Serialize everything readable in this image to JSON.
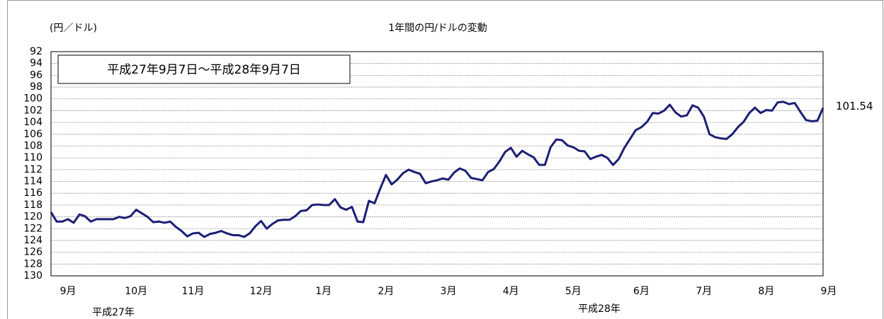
{
  "chart_data": {
    "type": "line",
    "title": "1年間の円/ドルの変動",
    "y_label": "(円／ドル)",
    "period_label": "平成27年9月7日～平成28年9月7日",
    "year_labels": [
      "平成27年",
      "平成28年"
    ],
    "categories": [
      null,
      null,
      "9月",
      null,
      null,
      null,
      null,
      null,
      null,
      null,
      null,
      null,
      null,
      null,
      "10月",
      null,
      null,
      null,
      null,
      null,
      null,
      null,
      null,
      null,
      "11月",
      null,
      null,
      null,
      null,
      null,
      null,
      null,
      null,
      null,
      null,
      null,
      "12月",
      null,
      null,
      null,
      null,
      null,
      null,
      null,
      null,
      null,
      null,
      "1月",
      null,
      null,
      null,
      null,
      null,
      null,
      null,
      null,
      null,
      null,
      "2月",
      null,
      null,
      null,
      null,
      null,
      null,
      null,
      null,
      null,
      null,
      "3月",
      null,
      null,
      null,
      null,
      null,
      null,
      null,
      null,
      null,
      null,
      "4月",
      null,
      null,
      null,
      null,
      null,
      null,
      null,
      null,
      null,
      null,
      "5月",
      null,
      null,
      null,
      null,
      null,
      null,
      null,
      null,
      null,
      null,
      null,
      "6月",
      null,
      null,
      null,
      null,
      null,
      null,
      null,
      null,
      null,
      null,
      "7月",
      null,
      null,
      null,
      null,
      null,
      null,
      null,
      null,
      null,
      null,
      "8月",
      null,
      null,
      null,
      null,
      null,
      null,
      null,
      null,
      null,
      null,
      "9月"
    ],
    "series": [
      {
        "color": "#1c1f73",
        "values": [
          119.2,
          120.8,
          120.8,
          120.4,
          121.0,
          119.6,
          119.9,
          120.8,
          120.4,
          120.4,
          120.4,
          120.4,
          120.0,
          120.2,
          119.9,
          118.8,
          119.4,
          120.0,
          120.9,
          120.8,
          121.0,
          120.8,
          121.7,
          122.4,
          123.3,
          122.8,
          122.7,
          123.4,
          122.9,
          122.7,
          122.4,
          122.8,
          123.1,
          123.1,
          123.4,
          122.8,
          121.6,
          120.7,
          122.0,
          121.2,
          120.6,
          120.5,
          120.5,
          119.9,
          119.0,
          118.9,
          118.0,
          117.9,
          118.0,
          118.0,
          117.0,
          118.4,
          118.8,
          118.3,
          120.8,
          120.9,
          117.3,
          117.7,
          115.2,
          112.9,
          114.5,
          113.7,
          112.6,
          112.0,
          112.4,
          112.7,
          114.3,
          114.0,
          113.8,
          113.5,
          113.7,
          112.5,
          111.8,
          112.2,
          113.4,
          113.6,
          113.8,
          112.4,
          111.9,
          110.6,
          109.0,
          108.3,
          109.8,
          108.8,
          109.4,
          109.9,
          111.2,
          111.2,
          108.2,
          106.9,
          107.0,
          107.9,
          108.2,
          108.8,
          108.9,
          110.2,
          109.8,
          109.5,
          110.0,
          111.2,
          110.2,
          108.3,
          106.8,
          105.3,
          104.8,
          103.9,
          102.4,
          102.5,
          102.0,
          101.0,
          102.3,
          103.0,
          102.8,
          101.1,
          101.5,
          103.0,
          106.0,
          106.5,
          106.7,
          106.8,
          106.0,
          104.8,
          103.9,
          102.4,
          101.5,
          102.4,
          101.9,
          102.0,
          100.6,
          100.5,
          100.9,
          100.7,
          102.2,
          103.6,
          103.8,
          103.7,
          101.54
        ]
      }
    ],
    "ylim": [
      130,
      92
    ],
    "yticks": [
      92,
      94,
      96,
      98,
      100,
      102,
      104,
      106,
      108,
      110,
      112,
      114,
      116,
      118,
      120,
      122,
      124,
      126,
      128,
      130
    ],
    "grid": true
  }
}
